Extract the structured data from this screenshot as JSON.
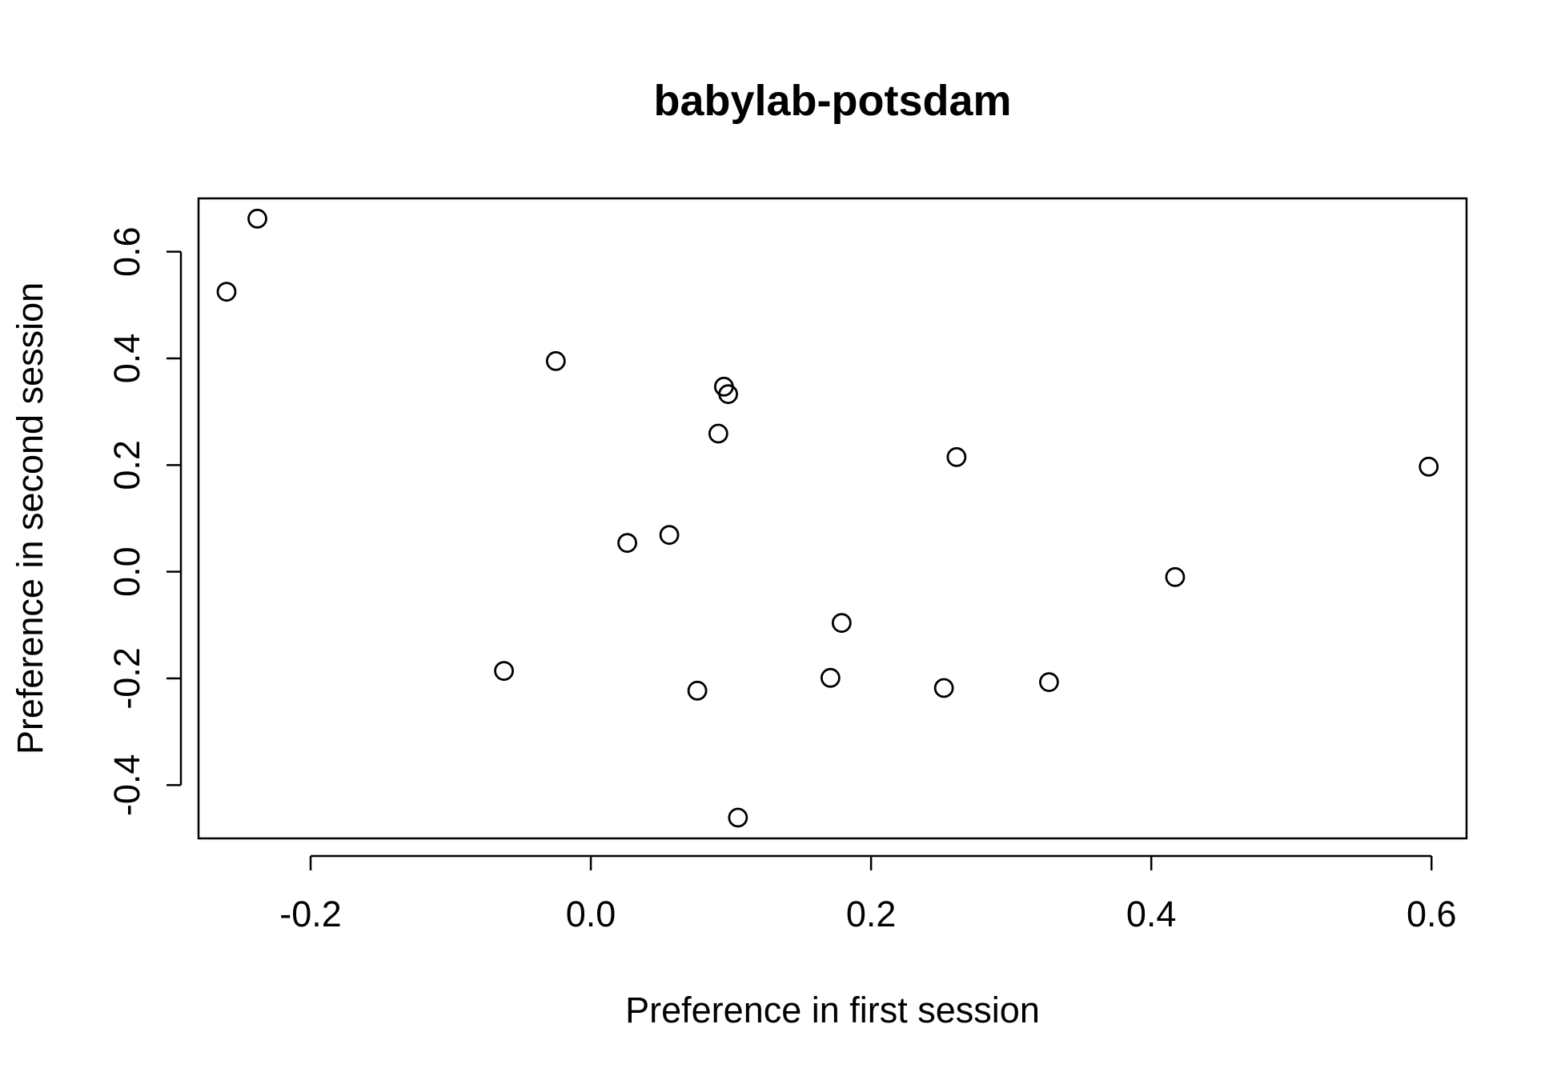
{
  "chart_data": {
    "type": "scatter",
    "title": "babylab-potsdam",
    "xlabel": "Preference in first session",
    "ylabel": "Preference in second session",
    "xlim": [
      -0.28,
      0.625
    ],
    "ylim": [
      -0.5,
      0.7
    ],
    "xticks": [
      -0.2,
      0.0,
      0.2,
      0.4,
      0.6
    ],
    "yticks": [
      -0.4,
      -0.2,
      0.0,
      0.2,
      0.4,
      0.6
    ],
    "xtick_labels": [
      "-0.2",
      "0.0",
      "0.2",
      "0.4",
      "0.6"
    ],
    "ytick_labels": [
      "-0.4",
      "-0.2",
      "0.0",
      "0.2",
      "0.4",
      "0.6"
    ],
    "grid": false,
    "marker": "open-circle",
    "color": "#000000",
    "points": [
      {
        "x": -0.238,
        "y": 0.662
      },
      {
        "x": -0.26,
        "y": 0.525
      },
      {
        "x": -0.025,
        "y": 0.395
      },
      {
        "x": 0.095,
        "y": 0.347
      },
      {
        "x": 0.098,
        "y": 0.333
      },
      {
        "x": 0.091,
        "y": 0.259
      },
      {
        "x": 0.261,
        "y": 0.215
      },
      {
        "x": 0.598,
        "y": 0.197
      },
      {
        "x": 0.056,
        "y": 0.069
      },
      {
        "x": 0.026,
        "y": 0.054
      },
      {
        "x": 0.417,
        "y": -0.01
      },
      {
        "x": 0.179,
        "y": -0.096
      },
      {
        "x": -0.062,
        "y": -0.186
      },
      {
        "x": 0.171,
        "y": -0.199
      },
      {
        "x": 0.327,
        "y": -0.207
      },
      {
        "x": 0.252,
        "y": -0.218
      },
      {
        "x": 0.076,
        "y": -0.223
      },
      {
        "x": 0.105,
        "y": -0.461
      }
    ]
  }
}
